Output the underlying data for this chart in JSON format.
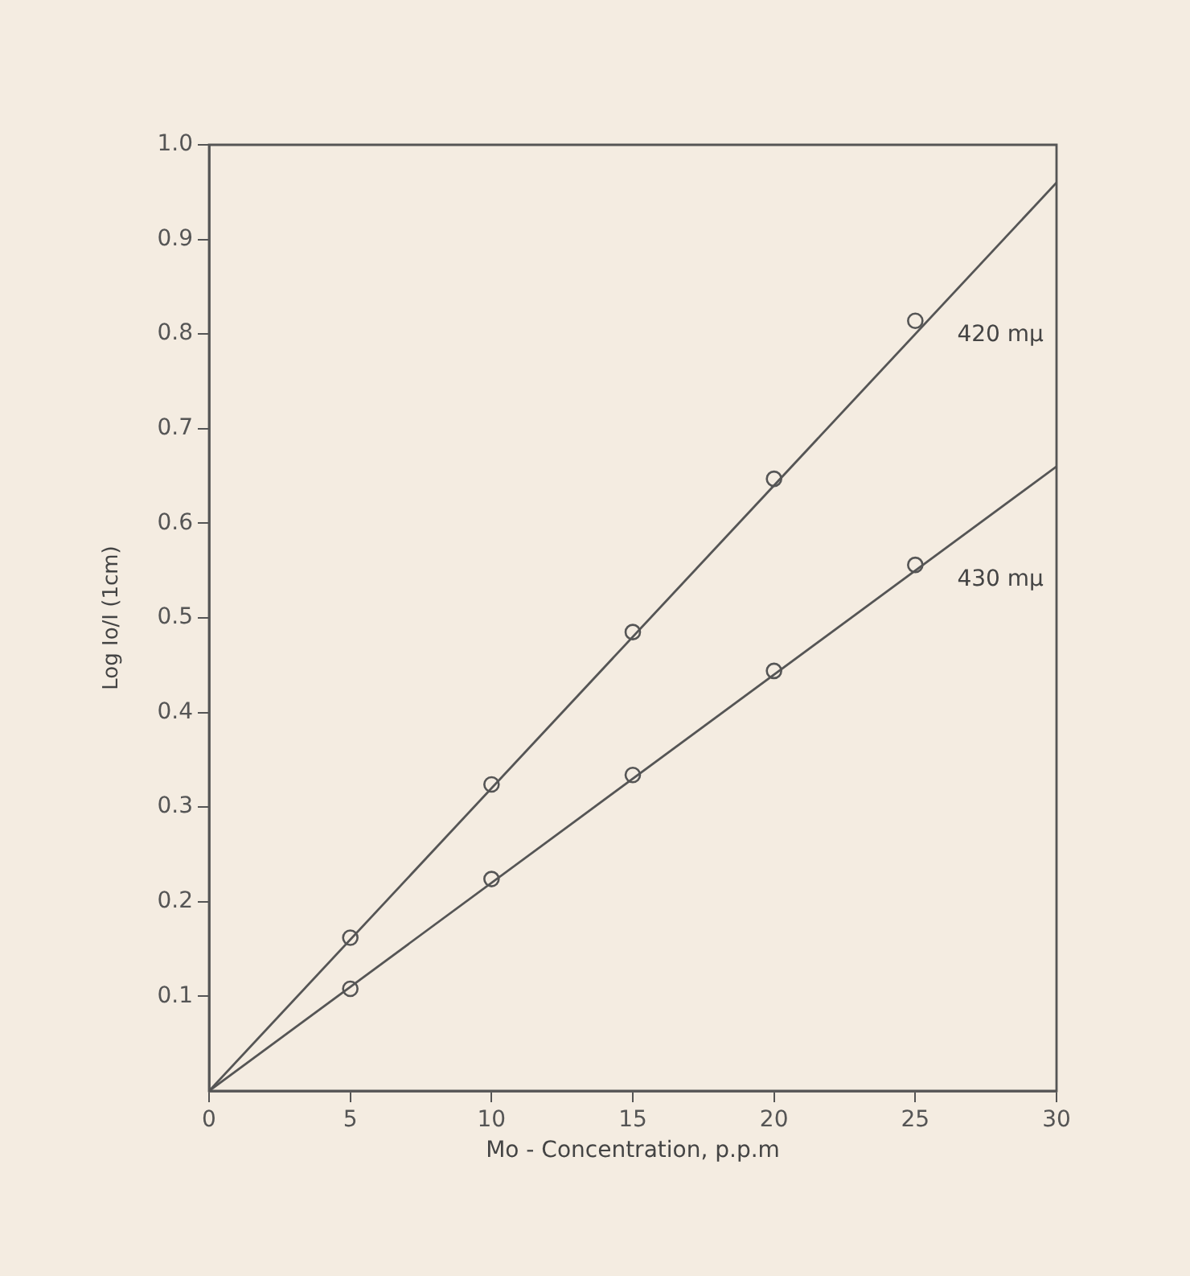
{
  "chart_data": {
    "type": "scatter",
    "xlabel": "Mo - Concentration, p.p.m",
    "ylabel": "Log Io/I (1cm)",
    "xlim": [
      0,
      30
    ],
    "xticks": [
      0,
      5,
      10,
      15,
      20,
      25,
      30
    ],
    "ylim": [
      0,
      1
    ],
    "yticks": [
      0.1,
      0.2,
      0.3,
      0.4,
      0.5,
      0.6,
      0.7,
      0.8,
      0.9,
      {
        "value": 1,
        "label": "1.0"
      }
    ],
    "grid": false,
    "legend": false,
    "marker": "circle",
    "line_style": "solid",
    "series": [
      {
        "color": "#555555",
        "x": [
          5,
          10,
          15,
          20,
          25
        ],
        "values": [
          0.162,
          0.324,
          0.485,
          0.647,
          0.814
        ]
      },
      {
        "color": "#555555",
        "x": [
          5,
          10,
          15,
          20,
          25
        ],
        "values": [
          0.108,
          0.224,
          0.334,
          0.444,
          0.556
        ]
      },
      {
        "type": "line",
        "name": "420 mμ",
        "color": "#555555",
        "marker": "none",
        "x": [
          0,
          30
        ],
        "values": [
          0,
          0.96
        ]
      },
      {
        "type": "line",
        "name": "430 mμ",
        "color": "#555555",
        "marker": "none",
        "x": [
          0,
          30
        ],
        "values": [
          0,
          0.66
        ]
      }
    ]
  }
}
